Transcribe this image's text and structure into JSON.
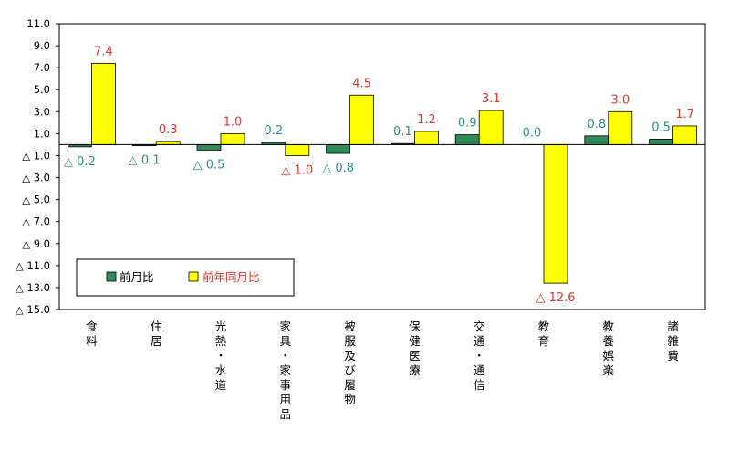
{
  "chart_data": {
    "type": "bar",
    "title": "",
    "xlabel": "",
    "ylabel": "",
    "ylim": [
      -15.0,
      11.0
    ],
    "yticks": [
      11.0,
      9.0,
      7.0,
      5.0,
      3.0,
      1.0,
      -1.0,
      -3.0,
      -5.0,
      -7.0,
      -9.0,
      -11.0,
      -13.0,
      -15.0
    ],
    "ytick_labels": [
      "11.0",
      "9.0",
      "7.0",
      "5.0",
      "3.0",
      "1.0",
      "△ 1.0",
      "△ 3.0",
      "△ 5.0",
      "△ 7.0",
      "△ 9.0",
      "△ 11.0",
      "△ 13.0",
      "△ 15.0"
    ],
    "categories": [
      "食料",
      "住居",
      "光熱・水道",
      "家具・家事用品",
      "被服及び履物",
      "保健医療",
      "交通・通信",
      "教育",
      "教養娯楽",
      "諸雑費"
    ],
    "series": [
      {
        "name": "前月比",
        "color": "#2e8b57",
        "label_color": "#2f8f8f",
        "values": [
          -0.2,
          -0.1,
          -0.5,
          0.2,
          -0.8,
          0.1,
          0.9,
          0.0,
          0.8,
          0.5
        ],
        "data_labels": [
          "△ 0.2",
          "△ 0.1",
          "△ 0.5",
          "0.2",
          "△ 0.8",
          "0.1",
          "0.9",
          "0.0",
          "0.8",
          "0.5"
        ]
      },
      {
        "name": "前年同月比",
        "color": "#ffff00",
        "label_color": "#e8362b",
        "values": [
          7.4,
          0.3,
          1.0,
          -1.0,
          4.5,
          1.2,
          3.1,
          -12.6,
          3.0,
          1.7
        ],
        "data_labels": [
          "7.4",
          "0.3",
          "1.0",
          "△ 1.0",
          "4.5",
          "1.2",
          "3.1",
          "△ 12.6",
          "3.0",
          "1.7"
        ]
      }
    ],
    "legend": {
      "position": "bottom-left",
      "items": [
        "前月比",
        "前年同月比"
      ]
    },
    "grid": false
  }
}
